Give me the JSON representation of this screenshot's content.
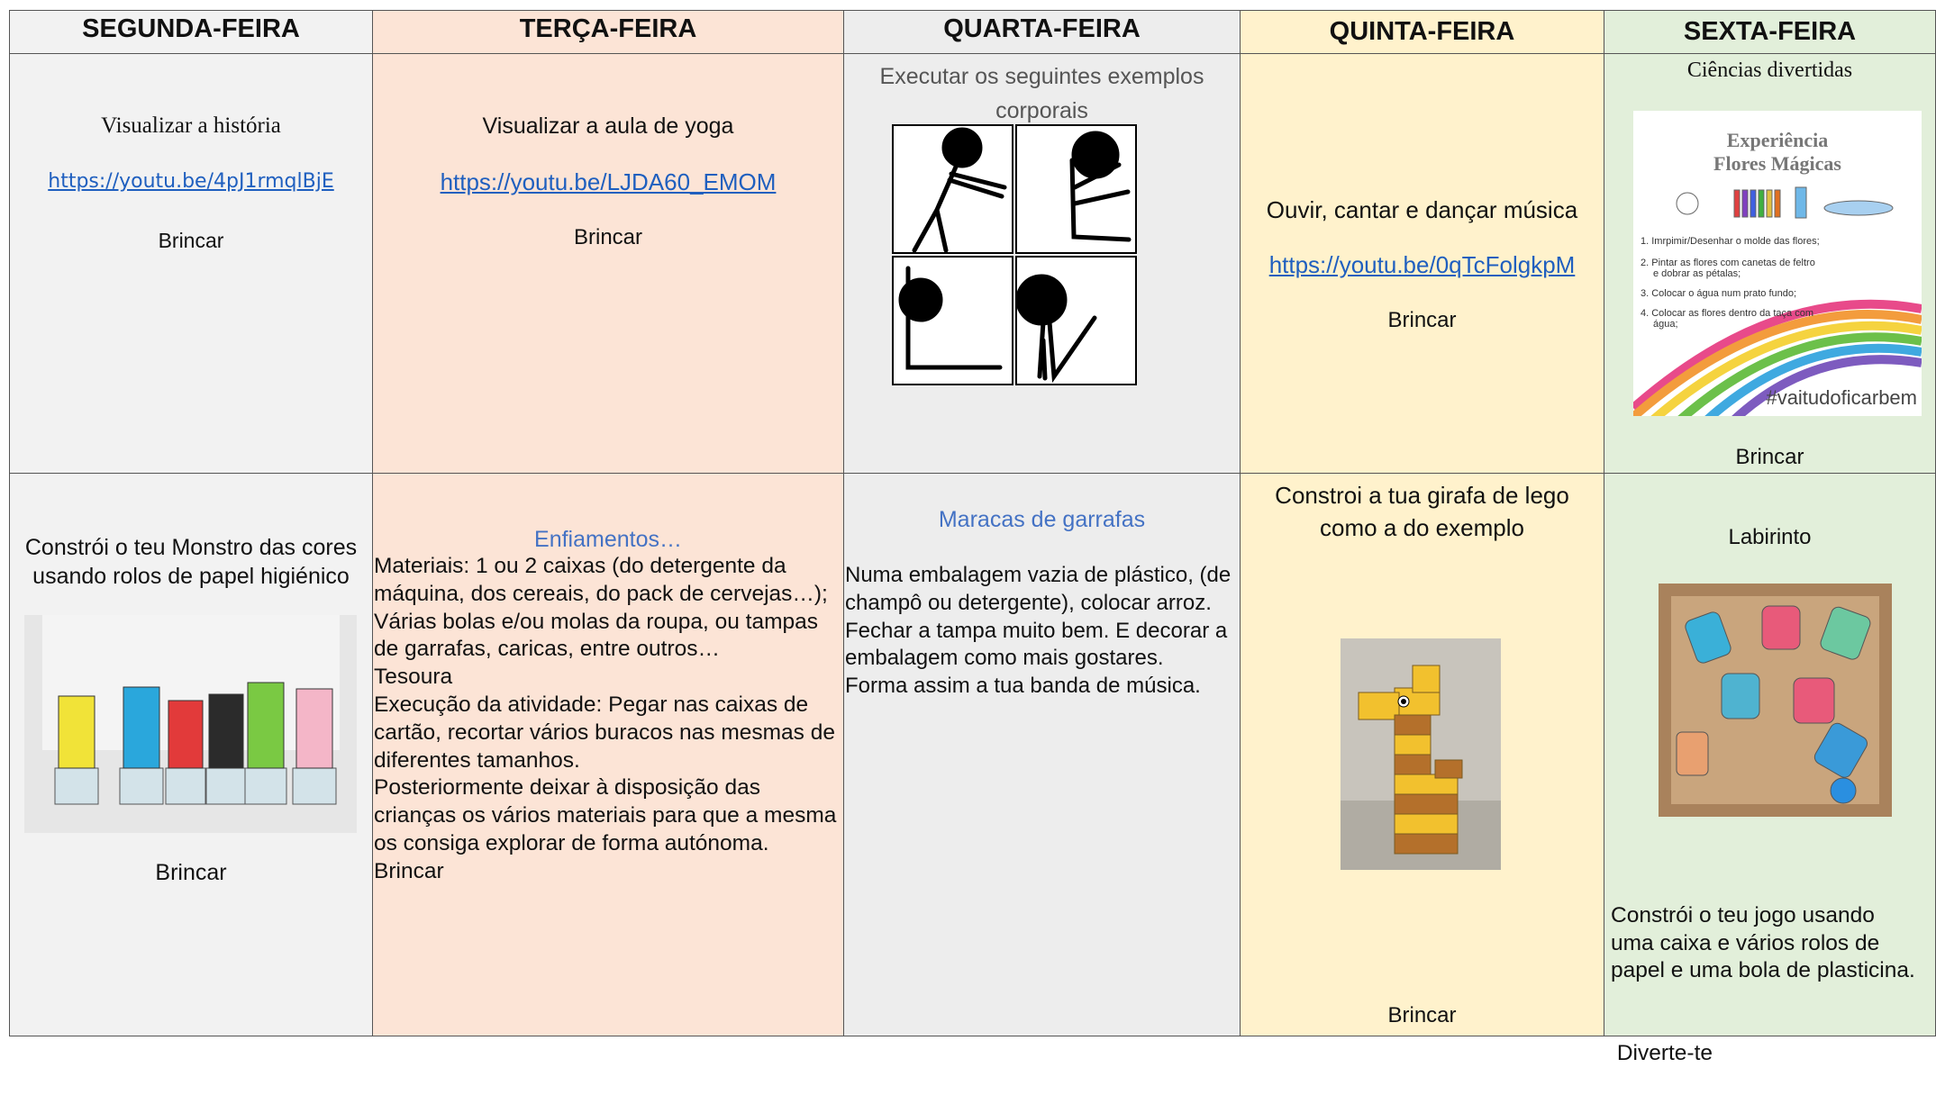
{
  "header": [
    "SEGUNDA-FEIRA",
    "TERÇA-FEIRA",
    "QUARTA-FEIRA",
    "QUINTA-FEIRA",
    "SEXTA-FEIRA"
  ],
  "rows": [
    [
      {
        "text": "Visualizar a história",
        "link": "https://youtu.be/4pJ1rmqlBjE",
        "after": "Brincar"
      },
      {
        "text": "Visualizar a aula de yoga",
        "link": "https://youtu.be/LJDA60_EMOM",
        "after": "Brincar"
      },
      {
        "text": "Executar os seguintes exemplos corporais"
      },
      {
        "text": "Ouvir, cantar e dançar música",
        "link": "https://youtu.be/0qTcFolgkpM",
        "after": "Brincar"
      },
      {
        "text": "Ciências divertidas",
        "after": "Brincar",
        "image": {
          "title": "Experiência",
          "subtitle": "Flores Mágicas",
          "steps": [
            "1. Imrpimir/Desenhar o molde das flores;",
            "2. Pintar as flores com canetas de feltro",
            "e dobrar as pétalas;",
            "3. Colocar o água num prato fundo;",
            "4. Colocar as flores dentro da taça com",
            "água;"
          ],
          "tag": "#vaitudoficarbem"
        }
      }
    ],
    [
      {
        "text": "Constrói o teu Monstro das cores usando rolos de papel higiénico",
        "after": "Brincar"
      },
      {
        "title": "Enfiamentos…",
        "body": [
          "Materiais: 1 ou 2 caixas (do detergente da máquina, dos cereais, do pack de cervejas…);",
          "Várias bolas e/ou molas da roupa, ou tampas de garrafas, caricas, entre outros…",
          "Tesoura",
          "Execução da atividade: Pegar nas caixas de cartão, recortar vários buracos nas mesmas de diferentes tamanhos.",
          "Posteriormente deixar à disposição das crianças os vários materiais para que a mesma os consiga explorar de forma autónoma.",
          "Brincar"
        ]
      },
      {
        "title": "Maracas de garrafas",
        "body": [
          "Numa embalagem vazia de plástico, (de champô ou detergente), colocar arroz. Fechar a tampa muito bem. E decorar a embalagem como mais gostares.",
          "Forma assim a tua banda de música."
        ]
      },
      {
        "text": "Constroi a tua girafa de lego como a do exemplo",
        "after": "Brincar"
      },
      {
        "text": "Labirinto",
        "body": [
          "Constrói o teu jogo usando uma caixa e vários rolos de papel e uma bola de plasticina.",
          " Diverte-te"
        ]
      }
    ]
  ]
}
